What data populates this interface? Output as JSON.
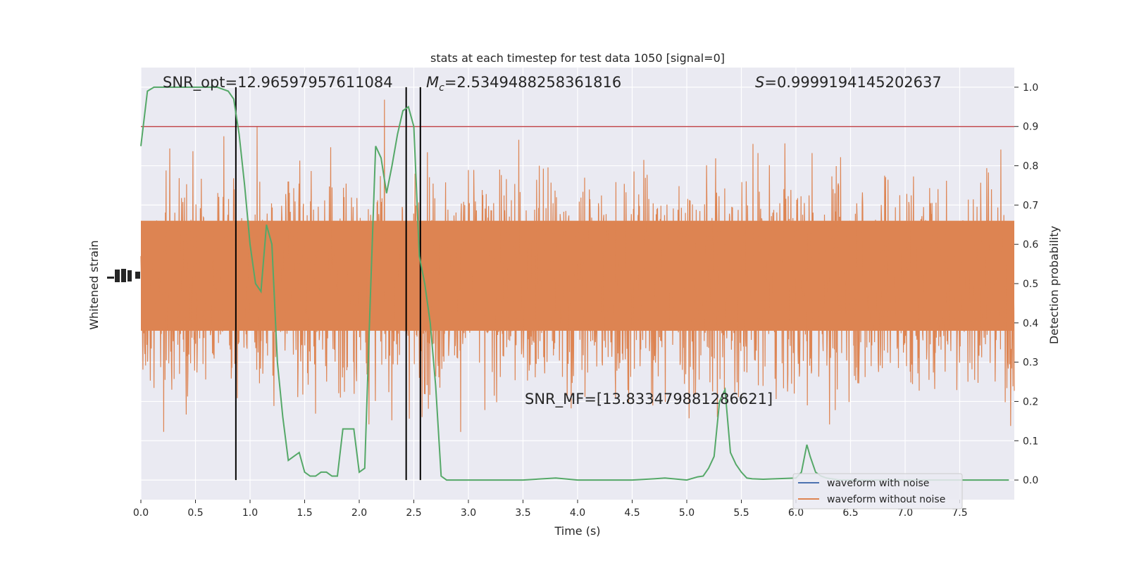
{
  "chart_data": {
    "type": "line",
    "title": "stats at each timestep for test data 1050 [signal=0]",
    "xlabel": "Time (s)",
    "ylabel_left": "Whitened strain",
    "ylabel_right": "Detection probability",
    "xlim": [
      0,
      8
    ],
    "ylim_right": [
      -0.05,
      1.05
    ],
    "grid": true,
    "x_ticks": [
      "0.0",
      "0.5",
      "1.0",
      "1.5",
      "2.0",
      "2.5",
      "3.0",
      "3.5",
      "4.0",
      "4.5",
      "5.0",
      "5.5",
      "6.0",
      "6.5",
      "7.0",
      "7.5"
    ],
    "y_ticks_right": [
      "0.0",
      "0.1",
      "0.2",
      "0.3",
      "0.4",
      "0.5",
      "0.6",
      "0.7",
      "0.8",
      "0.9",
      "1.0"
    ],
    "threshold": 0.9,
    "vertical_lines": [
      0.87,
      2.43,
      2.56
    ],
    "annotations": {
      "snr_opt": "SNR_opt=12.96597957611084",
      "mc_symbol": "M",
      "mc_sub": "c",
      "mc_value": "=2.5349488258361816",
      "s_symbol": "S",
      "s_value": "=0.9999194145202637",
      "snr_mf": "SNR_MF=[13.833479881286621]"
    },
    "legend": {
      "location": "lower right",
      "entries": [
        {
          "label": "waveform with noise",
          "color": "#4c72b0"
        },
        {
          "label": "waveform without noise",
          "color": "#dd8452"
        }
      ]
    },
    "series": [
      {
        "name": "waveform with noise",
        "color": "#4c72b0",
        "description": "hidden beneath orange trace"
      },
      {
        "name": "waveform without noise",
        "color": "#dd8452",
        "description": "dense whitened strain noise trace"
      },
      {
        "color": "#55a868",
        "x": [
          0.0,
          0.06,
          0.12,
          0.2,
          0.3,
          0.4,
          0.5,
          0.6,
          0.7,
          0.8,
          0.85,
          0.9,
          0.95,
          1.0,
          1.05,
          1.1,
          1.15,
          1.2,
          1.25,
          1.3,
          1.35,
          1.4,
          1.45,
          1.5,
          1.55,
          1.6,
          1.65,
          1.7,
          1.75,
          1.8,
          1.85,
          1.9,
          1.95,
          2.0,
          2.05,
          2.1,
          2.15,
          2.2,
          2.25,
          2.3,
          2.35,
          2.4,
          2.45,
          2.5,
          2.55,
          2.6,
          2.65,
          2.7,
          2.75,
          2.8,
          2.87,
          2.93,
          3.0,
          3.5,
          3.8,
          4.0,
          4.5,
          4.7,
          4.8,
          5.0,
          5.1,
          5.15,
          5.2,
          5.25,
          5.3,
          5.35,
          5.4,
          5.45,
          5.5,
          5.55,
          5.6,
          5.7,
          6.0,
          6.05,
          6.1,
          6.13,
          6.18,
          6.23,
          6.28,
          6.4,
          6.6,
          6.8,
          7.0,
          7.2,
          7.5,
          7.7,
          7.85,
          7.95
        ],
        "y": [
          0.85,
          0.99,
          1.0,
          1.0,
          1.0,
          1.0,
          1.0,
          1.0,
          1.0,
          0.99,
          0.97,
          0.88,
          0.75,
          0.6,
          0.5,
          0.48,
          0.65,
          0.6,
          0.3,
          0.16,
          0.05,
          0.06,
          0.07,
          0.02,
          0.01,
          0.01,
          0.02,
          0.02,
          0.01,
          0.01,
          0.13,
          0.13,
          0.13,
          0.02,
          0.03,
          0.45,
          0.85,
          0.82,
          0.73,
          0.8,
          0.88,
          0.94,
          0.95,
          0.9,
          0.57,
          0.5,
          0.4,
          0.24,
          0.01,
          0.0,
          0.0,
          0.0,
          0.0,
          0.0,
          0.005,
          0.0,
          0.0,
          0.003,
          0.005,
          0.0,
          0.008,
          0.01,
          0.03,
          0.06,
          0.2,
          0.23,
          0.07,
          0.04,
          0.02,
          0.005,
          0.003,
          0.002,
          0.005,
          0.02,
          0.09,
          0.06,
          0.02,
          0.01,
          0.005,
          0.0,
          0.0,
          0.0,
          0.0,
          0.0,
          0.0,
          0.0,
          0.0,
          0.0
        ]
      }
    ]
  }
}
